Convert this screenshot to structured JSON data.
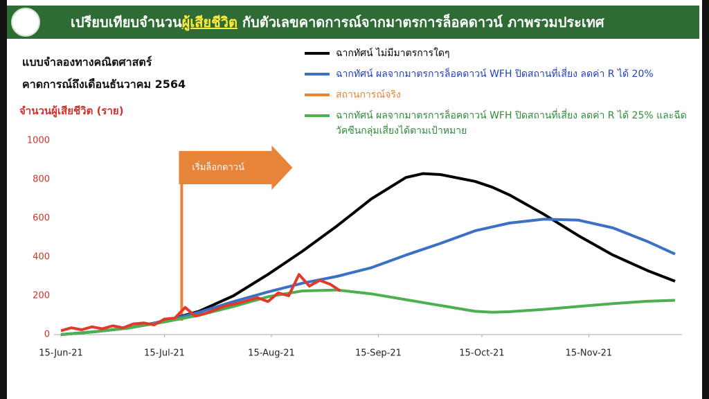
{
  "chart_data": {
    "type": "line",
    "title": [
      "เปรียบเทียบจำนวน",
      "ผู้เสียชีวิต",
      "กับตัวเลขคาดการณ์จากมาตรการล็อคดาวน์ ภาพรวมประเทศ"
    ],
    "subtitle": [
      "แบบจำลองทางคณิตศาสตร์",
      "คาดการณ์ถึงเดือนธันวาคม 2564"
    ],
    "y_label": "จำนวนผู้เสียชีวิต (ราย)",
    "annotation": {
      "text": "เริ่มล็อกดาวน์",
      "x": "2021-07-20"
    },
    "x": [
      "2021-06-15",
      "2021-06-25",
      "2021-07-05",
      "2021-07-15",
      "2021-07-25",
      "2021-08-04",
      "2021-08-14",
      "2021-08-24",
      "2021-09-03",
      "2021-09-13",
      "2021-09-23",
      "2021-09-28",
      "2021-10-03",
      "2021-10-13",
      "2021-10-18",
      "2021-10-23",
      "2021-11-02",
      "2021-11-12",
      "2021-11-22",
      "2021-12-02",
      "2021-12-10"
    ],
    "series": [
      {
        "name": "ฉากทัศน์ ไม่มีมาตรการใดๆ",
        "color": "#000000",
        "values": [
          0,
          15,
          35,
          70,
          120,
          200,
          310,
          430,
          560,
          700,
          810,
          830,
          825,
          790,
          760,
          720,
          620,
          510,
          410,
          330,
          275
        ]
      },
      {
        "name": "ฉากทัศน์ ผลจากมาตรการล็อคดาวน์ WFH ปิดสถานที่เสี่ยง ลดค่า R ได้ 20%",
        "color": "#3b70c4",
        "text_color": "#1f3fbf",
        "values": [
          0,
          15,
          35,
          70,
          115,
          170,
          220,
          265,
          300,
          345,
          410,
          440,
          470,
          535,
          555,
          575,
          595,
          590,
          550,
          480,
          415
        ]
      },
      {
        "name": "สถานการณ์จริง",
        "color": "#e23a2a",
        "legend_color": "#e8833a",
        "x": [
          "2021-06-15",
          "2021-06-18",
          "2021-06-21",
          "2021-06-24",
          "2021-06-27",
          "2021-06-30",
          "2021-07-03",
          "2021-07-06",
          "2021-07-09",
          "2021-07-12",
          "2021-07-15",
          "2021-07-18",
          "2021-07-21",
          "2021-07-24",
          "2021-07-27",
          "2021-07-30",
          "2021-08-02",
          "2021-08-05",
          "2021-08-08",
          "2021-08-11",
          "2021-08-14",
          "2021-08-17",
          "2021-08-20",
          "2021-08-23",
          "2021-08-26",
          "2021-08-29",
          "2021-09-01",
          "2021-09-04"
        ],
        "values": [
          20,
          35,
          25,
          40,
          30,
          45,
          35,
          55,
          60,
          50,
          80,
          85,
          140,
          95,
          110,
          130,
          150,
          160,
          175,
          190,
          170,
          215,
          200,
          310,
          250,
          280,
          260,
          225
        ]
      },
      {
        "name": "ฉากทัศน์ ผลจากมาตรการล็อคดาวน์ WFH ปิดสถานที่เสี่ยง ลดค่า R ได้ 25% และฉีดวัคซีนกลุ่มเสี่ยงได้ตามเป้าหมาย",
        "color": "#4caf50",
        "text_color": "#2e8b3a",
        "values": [
          0,
          15,
          35,
          65,
          100,
          145,
          195,
          225,
          230,
          210,
          180,
          165,
          150,
          120,
          115,
          118,
          130,
          145,
          160,
          172,
          177
        ]
      }
    ],
    "xlim": [
      "2021-06-15",
      "2021-12-10"
    ],
    "xticks": [
      {
        "value": "2021-06-15",
        "label": "15-Jun-21"
      },
      {
        "value": "2021-07-15",
        "label": "15-Jul-21"
      },
      {
        "value": "2021-08-15",
        "label": "15-Aug-21"
      },
      {
        "value": "2021-09-15",
        "label": "15-Sep-21"
      },
      {
        "value": "2021-10-15",
        "label": "15-Oct-21"
      },
      {
        "value": "2021-11-15",
        "label": "15-Nov-21"
      }
    ],
    "ylim": [
      0,
      1000
    ],
    "yticks": [
      0,
      200,
      400,
      600,
      800,
      1000
    ],
    "grid": false
  }
}
